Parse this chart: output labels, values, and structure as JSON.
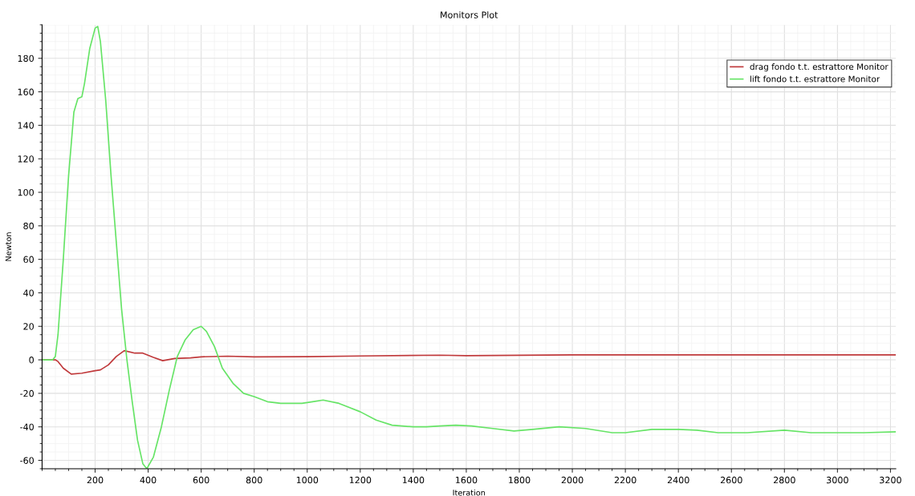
{
  "chart_data": {
    "type": "line",
    "title": "Monitors Plot",
    "xlabel": "Iteration",
    "ylabel": "Newton",
    "xlim": [
      0,
      3220
    ],
    "xticks": [
      200,
      400,
      600,
      800,
      1000,
      1200,
      1400,
      1600,
      1800,
      2000,
      2200,
      2400,
      2600,
      2800,
      3000,
      3200
    ],
    "ylim": [
      -65,
      200
    ],
    "yticks": [
      -60,
      -40,
      -20,
      0,
      20,
      40,
      60,
      80,
      100,
      120,
      140,
      160,
      180
    ],
    "grid": true,
    "legend": "top right",
    "marker": "none",
    "line_style": "solid",
    "series": [
      {
        "name": "drag fondo t.t. estrattore Monitor",
        "color": "#c0393b",
        "x": [
          0,
          50,
          60,
          80,
          110,
          150,
          200,
          220,
          250,
          280,
          310,
          350,
          380,
          420,
          455,
          500,
          560,
          600,
          700,
          800,
          1000,
          1200,
          1500,
          1600,
          2000,
          2500,
          3220
        ],
        "values": [
          0,
          0,
          -1,
          -5,
          -8.5,
          -8,
          -6.5,
          -6,
          -3,
          2,
          5.5,
          4,
          4,
          1.5,
          -0.5,
          0.8,
          1.2,
          1.8,
          2.2,
          1.8,
          1.9,
          2.3,
          2.8,
          2.5,
          3,
          3,
          3
        ]
      },
      {
        "name": "lift fondo t.t. estrattore Monitor",
        "color": "#66e466",
        "x": [
          0,
          40,
          50,
          60,
          80,
          100,
          120,
          135,
          150,
          160,
          180,
          200,
          210,
          220,
          240,
          260,
          280,
          300,
          320,
          340,
          360,
          380,
          395,
          420,
          450,
          480,
          510,
          540,
          570,
          600,
          620,
          650,
          680,
          720,
          760,
          800,
          850,
          900,
          980,
          1020,
          1060,
          1120,
          1200,
          1260,
          1320,
          1400,
          1450,
          1500,
          1560,
          1620,
          1700,
          1780,
          1850,
          1950,
          2050,
          2150,
          2200,
          2300,
          2400,
          2470,
          2550,
          2660,
          2800,
          2900,
          3000,
          3100,
          3220
        ],
        "values": [
          0,
          0,
          2,
          15,
          60,
          110,
          148,
          156,
          157,
          165,
          186,
          198,
          199,
          190,
          155,
          110,
          70,
          30,
          0,
          -25,
          -48,
          -62,
          -65,
          -58,
          -40,
          -18,
          2,
          12,
          18,
          20,
          17,
          8,
          -5,
          -14,
          -20,
          -22,
          -25,
          -26,
          -26,
          -25,
          -24,
          -26,
          -31,
          -36,
          -39,
          -40,
          -40,
          -39.5,
          -39,
          -39.5,
          -41,
          -42.5,
          -41.5,
          -40,
          -41,
          -43.5,
          -43.5,
          -41.5,
          -41.5,
          -42,
          -43.5,
          -43.5,
          -42,
          -43.5,
          -43.5,
          -43.5,
          -43
        ]
      }
    ]
  }
}
